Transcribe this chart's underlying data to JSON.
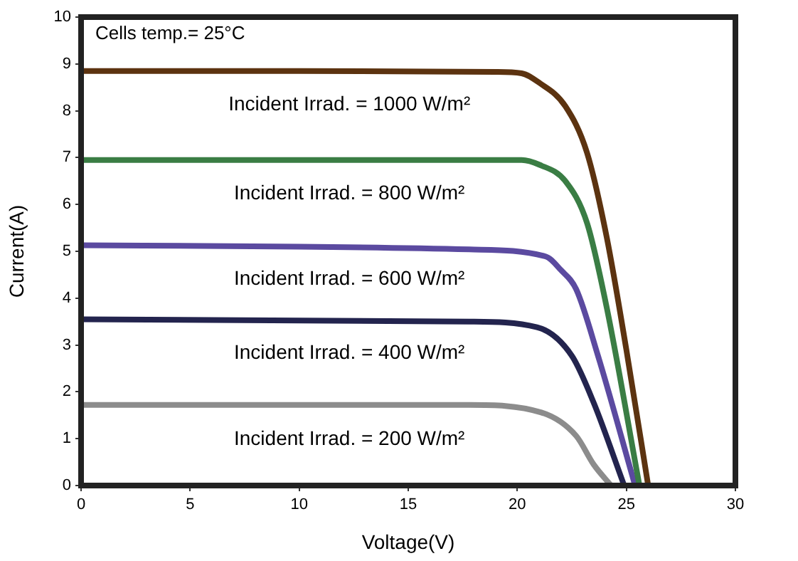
{
  "chart_data": {
    "type": "line",
    "xlabel": "Voltage(V)",
    "ylabel": "Current(A)",
    "xlim": [
      0,
      30
    ],
    "xticks": [
      0,
      5,
      10,
      15,
      20,
      25,
      30
    ],
    "ylim": [
      0,
      10
    ],
    "yticks": [
      0,
      1,
      2,
      3,
      4,
      5,
      6,
      7,
      8,
      9,
      10
    ],
    "grid": false,
    "legend": false,
    "marker": "none",
    "line_style": "solid",
    "series": [
      {
        "name": "Incident Irrad. = 1000 W/m²",
        "color": "#5c3310",
        "x": [
          0,
          10,
          19,
          20.2,
          21,
          22.2,
          23.2,
          24.1,
          25,
          26
        ],
        "values": [
          8.85,
          8.85,
          8.83,
          8.8,
          8.6,
          8.1,
          7.1,
          5.3,
          2.9,
          0
        ]
      },
      {
        "name": "Incident Irrad. = 800 W/m²",
        "color": "#3a7d44",
        "x": [
          0,
          20.2,
          21,
          22.2,
          23.2,
          24.1,
          25.6
        ],
        "values": [
          6.95,
          6.95,
          6.85,
          6.5,
          5.6,
          3.8,
          0
        ]
      },
      {
        "name": "Incident Irrad. = 600 W/m²",
        "color": "#5b4aa0",
        "x": [
          0,
          10,
          17.8,
          21.3,
          22,
          22.7,
          23.7,
          25.4
        ],
        "values": [
          5.13,
          5.1,
          5.04,
          4.89,
          4.6,
          4.19,
          2.77,
          0
        ]
      },
      {
        "name": "Incident Irrad. = 400 W/m²",
        "color": "#23244e",
        "x": [
          0,
          17.8,
          20.9,
          22.5,
          23.5,
          24.9
        ],
        "values": [
          3.55,
          3.5,
          3.38,
          2.77,
          1.77,
          0
        ]
      },
      {
        "name": "Incident Irrad. = 200 W/m²",
        "color": "#8c8c8c",
        "x": [
          0,
          17.8,
          21.1,
          22.7,
          23.5,
          24.3
        ],
        "values": [
          1.72,
          1.72,
          1.56,
          1.06,
          0.45,
          0
        ]
      }
    ],
    "annotations": [
      "Cells temp.= 25°C"
    ]
  }
}
